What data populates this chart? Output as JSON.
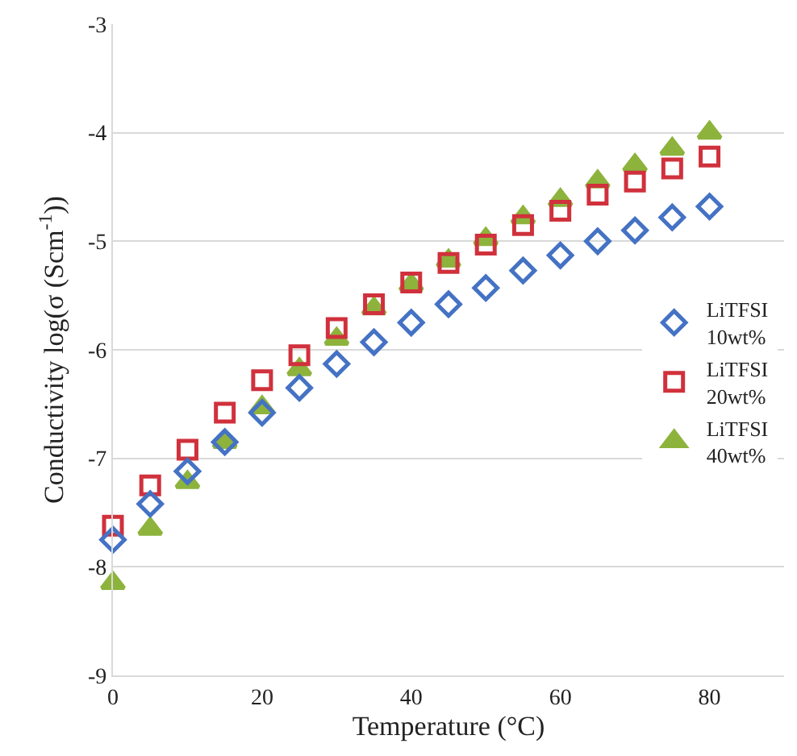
{
  "chart_data": {
    "type": "scatter",
    "xlabel": "Temperature (°C)",
    "ylabel": "Conductivity log(σ (Scm$^{-1}$))",
    "x": [
      0,
      5,
      10,
      15,
      20,
      25,
      30,
      35,
      40,
      45,
      50,
      55,
      60,
      65,
      70,
      75,
      80
    ],
    "series": [
      {
        "name": "LiTFSI 10wt%",
        "color": "#4472c4",
        "marker": "diamond",
        "values": [
          -7.75,
          -7.42,
          -7.12,
          -6.85,
          -6.58,
          -6.35,
          -6.13,
          -5.93,
          -5.75,
          -5.58,
          -5.43,
          -5.27,
          -5.13,
          -5.0,
          -4.9,
          -4.78,
          -4.68
        ]
      },
      {
        "name": "LiTFSI 20wt%",
        "color": "#d0313c",
        "marker": "square",
        "values": [
          -7.62,
          -7.25,
          -6.92,
          -6.58,
          -6.28,
          -6.05,
          -5.8,
          -5.58,
          -5.38,
          -5.2,
          -5.03,
          -4.85,
          -4.72,
          -4.57,
          -4.45,
          -4.33,
          -4.22
        ]
      },
      {
        "name": "LiTFSI 40wt%",
        "color": "#8db33c",
        "marker": "triangle",
        "values": [
          -8.15,
          -7.65,
          -7.22,
          -6.85,
          -6.53,
          -6.18,
          -5.9,
          -5.62,
          -5.4,
          -5.18,
          -4.98,
          -4.78,
          -4.62,
          -4.45,
          -4.3,
          -4.15,
          -4.0
        ]
      }
    ],
    "xlim": [
      0,
      90
    ],
    "xticks": [
      0,
      20,
      40,
      60,
      80
    ],
    "ylim": [
      -9,
      -3
    ],
    "yticks": [
      -9,
      -8,
      -7,
      -6,
      -5,
      -4,
      -3
    ],
    "grid": "y",
    "legend": "right"
  }
}
